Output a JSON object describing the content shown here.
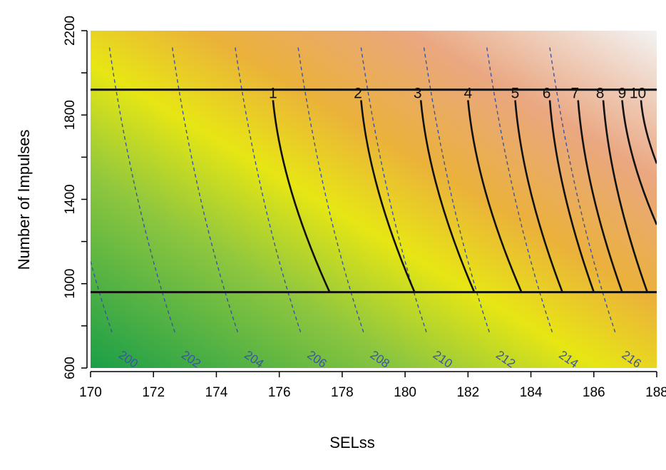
{
  "chart_data": {
    "type": "heatmap",
    "title": "",
    "xlabel": "SELss",
    "ylabel": "Number of Impulses",
    "xlim": [
      170,
      188
    ],
    "ylim": [
      600,
      2200
    ],
    "x_ticks": [
      170,
      172,
      174,
      176,
      178,
      180,
      182,
      184,
      186,
      188
    ],
    "x_tick_labels": [
      "170",
      "172",
      "174",
      "176",
      "178",
      "180",
      "182",
      "184",
      "186",
      "188"
    ],
    "y_ticks": [
      600,
      1000,
      1400,
      1800,
      2200
    ],
    "y_tick_labels": [
      "600",
      "1000",
      "1400",
      "1800",
      "2200"
    ],
    "y_minor_ticks": [
      800,
      1200,
      1600,
      2000
    ],
    "colormap": [
      "#1a9e48",
      "#8dc63f",
      "#e7e614",
      "#ebb13b",
      "#eaa781",
      "#f3f3f3"
    ],
    "horizontal_lines": [
      1920,
      960
    ],
    "dashed_contours": {
      "color": "#3a55a0",
      "labels": [
        "200",
        "202",
        "204",
        "206",
        "208",
        "210",
        "212",
        "214",
        "216"
      ],
      "levels": [
        200,
        202,
        204,
        206,
        208,
        210,
        212,
        214,
        216
      ],
      "label_positions": [
        {
          "x": 170.9,
          "y": 660
        },
        {
          "x": 172.9,
          "y": 660
        },
        {
          "x": 174.9,
          "y": 660
        },
        {
          "x": 176.9,
          "y": 660
        },
        {
          "x": 178.9,
          "y": 660
        },
        {
          "x": 180.9,
          "y": 660
        },
        {
          "x": 182.9,
          "y": 660
        },
        {
          "x": 184.9,
          "y": 660
        },
        {
          "x": 186.9,
          "y": 660
        }
      ]
    },
    "solid_curves": {
      "color": "#111111",
      "labels": [
        "1",
        "2",
        "3",
        "4",
        "5",
        "6",
        "7",
        "8",
        "9",
        "10"
      ],
      "points": [
        {
          "top": [
            175.8,
            1870
          ],
          "bottom": [
            177.6,
            960
          ]
        },
        {
          "top": [
            178.6,
            1870
          ],
          "bottom": [
            180.3,
            960
          ]
        },
        {
          "top": [
            180.5,
            1870
          ],
          "bottom": [
            182.2,
            960
          ]
        },
        {
          "top": [
            182.0,
            1870
          ],
          "bottom": [
            183.7,
            960
          ]
        },
        {
          "top": [
            183.5,
            1870
          ],
          "bottom": [
            185.0,
            960
          ]
        },
        {
          "top": [
            184.6,
            1870
          ],
          "bottom": [
            186.0,
            960
          ]
        },
        {
          "top": [
            185.5,
            1870
          ],
          "bottom": [
            186.9,
            960
          ]
        },
        {
          "top": [
            186.3,
            1870
          ],
          "bottom": [
            187.7,
            960
          ]
        },
        {
          "top": [
            186.9,
            1870
          ],
          "bottom": [
            188.0,
            1280
          ]
        },
        {
          "top": [
            187.5,
            1870
          ],
          "bottom": [
            188.0,
            1570
          ]
        }
      ],
      "label_positions": [
        {
          "x": 175.8,
          "y": 1860
        },
        {
          "x": 178.5,
          "y": 1860
        },
        {
          "x": 180.4,
          "y": 1860
        },
        {
          "x": 182.0,
          "y": 1860
        },
        {
          "x": 183.5,
          "y": 1860
        },
        {
          "x": 184.5,
          "y": 1860
        },
        {
          "x": 185.4,
          "y": 1860
        },
        {
          "x": 186.2,
          "y": 1860
        },
        {
          "x": 186.9,
          "y": 1860
        },
        {
          "x": 187.4,
          "y": 1860
        }
      ]
    }
  }
}
